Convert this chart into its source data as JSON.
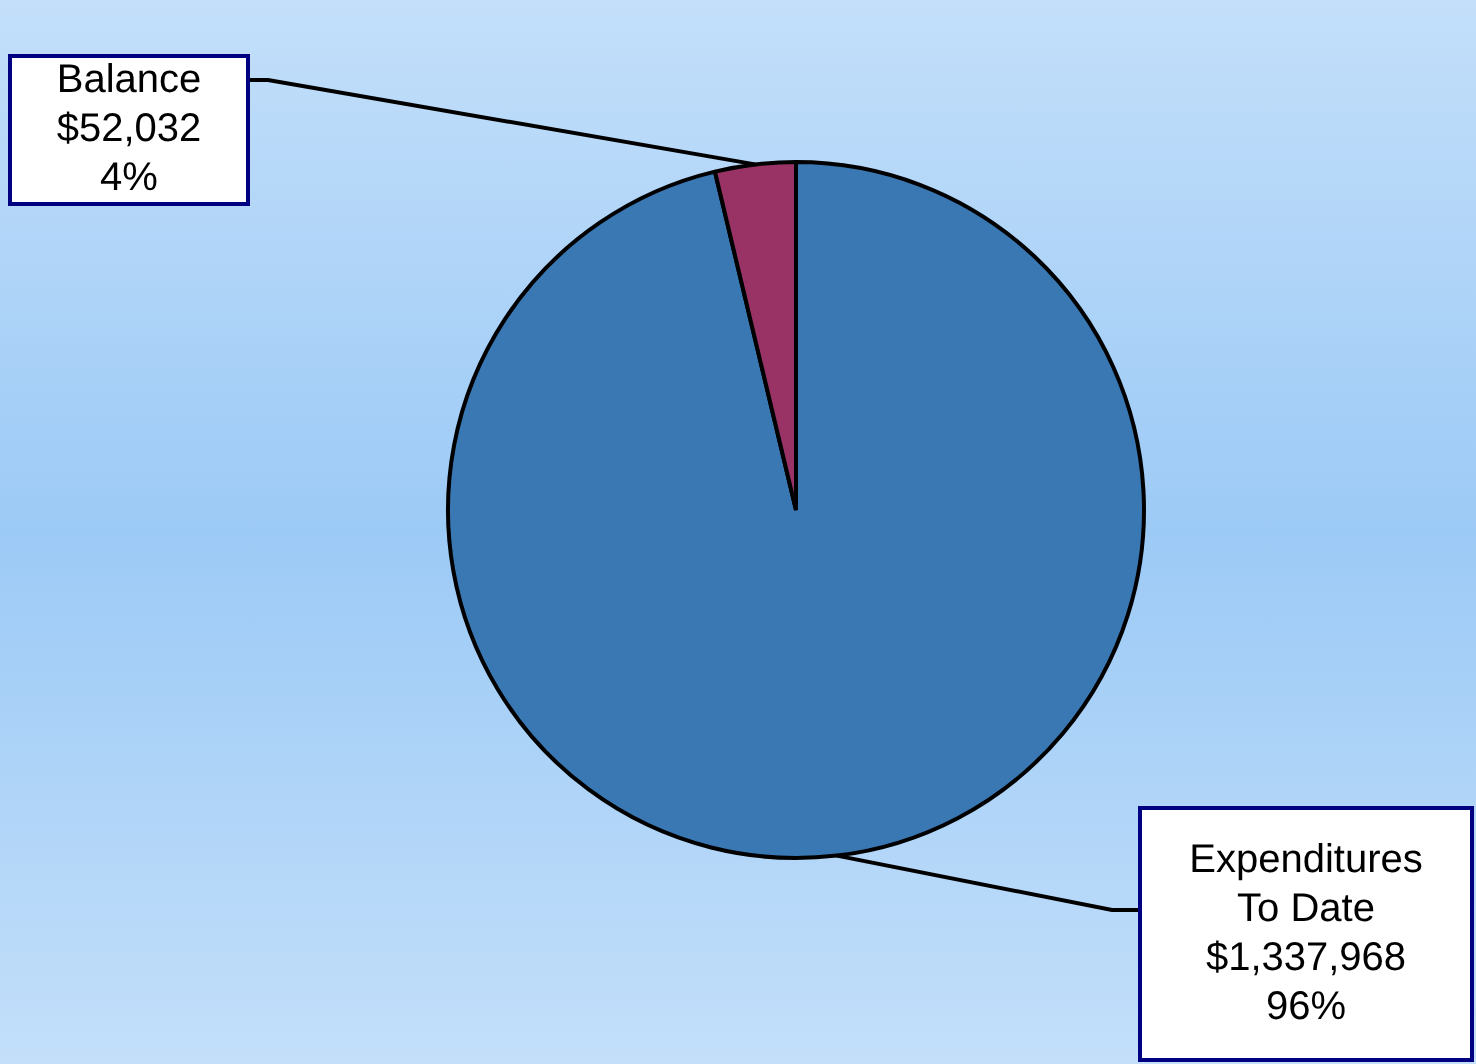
{
  "chart_data": {
    "type": "pie",
    "categories": [
      "Expenditures To Date",
      "Balance"
    ],
    "values": [
      1337968,
      52032
    ],
    "colors": [
      "#3a78b4",
      "#993366"
    ],
    "value_labels": [
      "$1,337,968\n96%",
      "$52,032\n4%"
    ],
    "legend": false
  }
}
